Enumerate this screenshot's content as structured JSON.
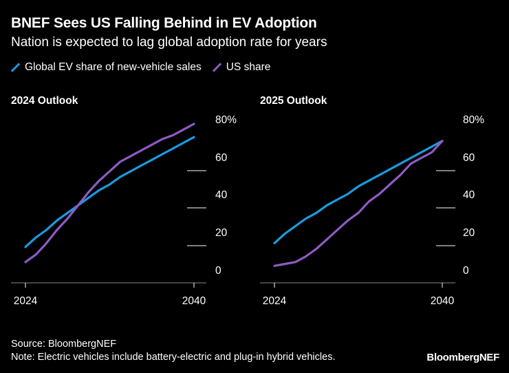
{
  "header": {
    "title": "BNEF Sees US Falling Behind in EV Adoption",
    "subtitle": "Nation is expected to lag global adoption rate for years"
  },
  "legend": [
    {
      "label": "Global EV share of new-vehicle sales",
      "color": "#1a9be0"
    },
    {
      "label": "US share",
      "color": "#8e5bc4"
    }
  ],
  "footer": {
    "source": "Source: BloombergNEF",
    "note": "Note: Electric vehicles include battery-electric and plug-in hybrid vehicles.",
    "brand": "BloombergNEF"
  },
  "chart_data": [
    {
      "type": "line",
      "title": "2024 Outlook",
      "x": [
        2024,
        2025,
        2026,
        2027,
        2028,
        2029,
        2030,
        2031,
        2032,
        2033,
        2034,
        2035,
        2036,
        2037,
        2038,
        2039,
        2040
      ],
      "xticks": [
        "2024",
        "2040"
      ],
      "yticks": [
        "0",
        "20",
        "40",
        "60",
        "80%"
      ],
      "ylim": [
        0,
        80
      ],
      "grid": true,
      "series": [
        {
          "name": "Global EV share of new-vehicle sales",
          "color": "#1a9be0",
          "values": [
            19,
            24,
            28,
            33,
            37,
            41,
            45,
            49,
            52,
            56,
            59,
            62,
            65,
            68,
            71,
            74,
            77
          ]
        },
        {
          "name": "US share",
          "color": "#8e5bc4",
          "values": [
            11,
            15,
            21,
            28,
            34,
            41,
            48,
            54,
            59,
            64,
            67,
            70,
            73,
            76,
            78,
            81,
            84
          ]
        }
      ]
    },
    {
      "type": "line",
      "title": "2025 Outlook",
      "x": [
        2024,
        2025,
        2026,
        2027,
        2028,
        2029,
        2030,
        2031,
        2032,
        2033,
        2034,
        2035,
        2036,
        2037,
        2038,
        2039,
        2040
      ],
      "xticks": [
        "2024",
        "2040"
      ],
      "yticks": [
        "0",
        "20",
        "40",
        "60",
        "80%"
      ],
      "ylim": [
        0,
        80
      ],
      "grid": true,
      "series": [
        {
          "name": "Global EV share of new-vehicle sales",
          "color": "#1a9be0",
          "values": [
            21,
            26,
            30,
            34,
            37,
            41,
            44,
            47,
            51,
            54,
            57,
            60,
            63,
            66,
            69,
            72,
            75
          ]
        },
        {
          "name": "US share",
          "color": "#8e5bc4",
          "values": [
            9,
            10,
            11,
            14,
            18,
            23,
            28,
            33,
            37,
            43,
            47,
            52,
            57,
            63,
            66,
            69,
            75
          ]
        }
      ]
    }
  ]
}
